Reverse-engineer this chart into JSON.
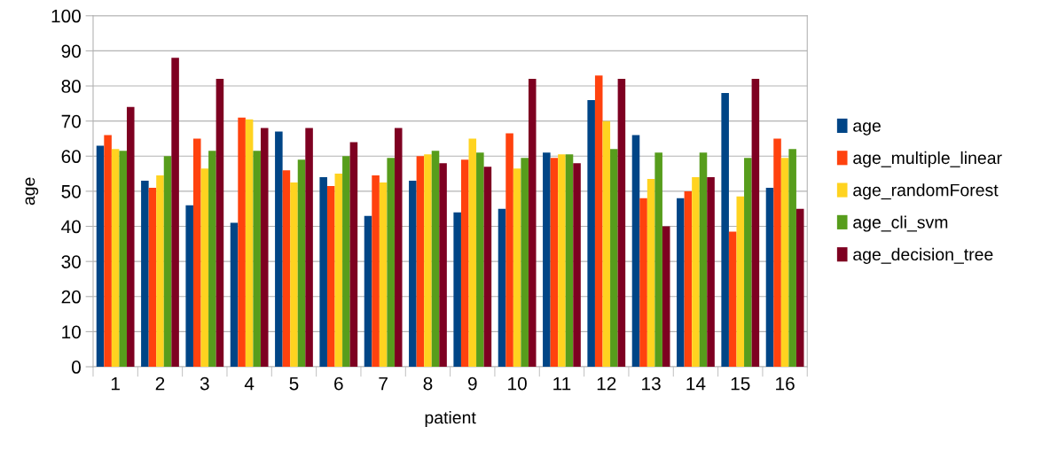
{
  "chart_data": {
    "type": "bar",
    "xlabel": "patient",
    "ylabel": "age",
    "categories": [
      "1",
      "2",
      "3",
      "4",
      "5",
      "6",
      "7",
      "8",
      "9",
      "10",
      "11",
      "12",
      "13",
      "14",
      "15",
      "16"
    ],
    "series": [
      {
        "name": "age",
        "color": "#004586",
        "values": [
          63,
          53,
          46,
          41,
          67,
          54,
          43,
          53,
          44,
          45,
          61,
          76,
          66,
          48,
          78,
          51
        ]
      },
      {
        "name": "age_multiple_linear",
        "color": "#ff420e",
        "values": [
          66,
          51,
          65,
          71,
          56,
          51.5,
          54.5,
          60,
          59,
          66.5,
          59.5,
          83,
          48,
          50,
          38.5,
          65
        ]
      },
      {
        "name": "age_randomForest",
        "color": "#ffd320",
        "values": [
          62,
          54.5,
          56.5,
          70.5,
          52.5,
          55,
          52.5,
          60.5,
          65,
          56.5,
          60.5,
          70,
          53.5,
          54,
          48.5,
          59.5
        ]
      },
      {
        "name": "age_cli_svm",
        "color": "#579d1c",
        "values": [
          61.5,
          60,
          61.5,
          61.5,
          59,
          60,
          59.5,
          61.5,
          61,
          59.5,
          60.5,
          62,
          61,
          61,
          59.5,
          62
        ]
      },
      {
        "name": "age_decision_tree",
        "color": "#7e0021",
        "values": [
          74,
          88,
          82,
          68,
          68,
          64,
          68,
          58,
          57,
          82,
          58,
          82,
          40,
          54,
          82,
          45
        ]
      }
    ],
    "ylim": [
      0,
      100
    ],
    "yticks": [
      0,
      10,
      20,
      30,
      40,
      50,
      60,
      70,
      80,
      90,
      100
    ],
    "grid": "y",
    "legend": "right"
  }
}
